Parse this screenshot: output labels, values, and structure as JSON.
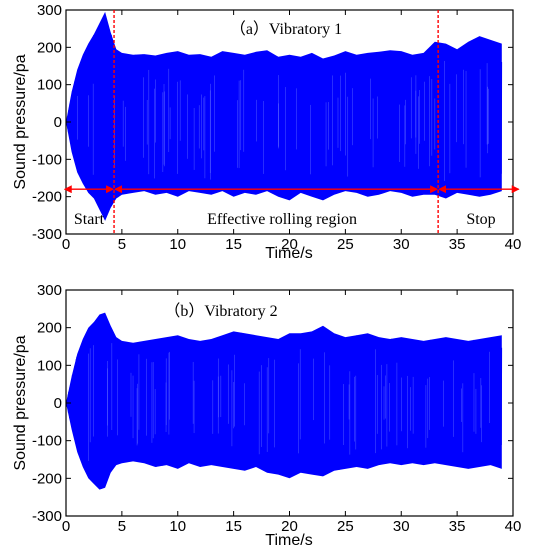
{
  "colors": {
    "signal": "#0000ff",
    "marker": "#ff0000",
    "axis": "#000000"
  },
  "chart_data": [
    {
      "type": "line",
      "title": "（a）Vibratory 1",
      "xlabel": "Time/s",
      "ylabel": "Sound pressure/pa",
      "xlim": [
        0,
        40
      ],
      "ylim": [
        -300,
        300
      ],
      "xticks": [
        "0",
        "5",
        "10",
        "15",
        "20",
        "25",
        "30",
        "35",
        "40"
      ],
      "yticks": [
        "300",
        "200",
        "100",
        "0",
        "-100",
        "-200",
        "-300"
      ],
      "grid": false,
      "series": [
        {
          "x": [
            0,
            0.5,
            1,
            1.5,
            2,
            2.5,
            3,
            3.5,
            4,
            4.5,
            5,
            6,
            7,
            8,
            9,
            10,
            11,
            12,
            13,
            14,
            15,
            16,
            17,
            18,
            19,
            20,
            21,
            22,
            23,
            24,
            25,
            26,
            27,
            28,
            29,
            30,
            31,
            32,
            33,
            34,
            35,
            36,
            37,
            38,
            39
          ],
          "upper": [
            0,
            80,
            140,
            180,
            210,
            235,
            265,
            295,
            240,
            195,
            185,
            180,
            182,
            178,
            185,
            190,
            180,
            182,
            175,
            190,
            185,
            180,
            188,
            192,
            175,
            180,
            175,
            185,
            170,
            178,
            190,
            180,
            185,
            188,
            192,
            190,
            180,
            185,
            215,
            210,
            195,
            215,
            230,
            220,
            210
          ],
          "lower": [
            0,
            -80,
            -135,
            -165,
            -190,
            -205,
            -235,
            -265,
            -230,
            -205,
            -195,
            -190,
            -185,
            -195,
            -190,
            -200,
            -185,
            -190,
            -195,
            -185,
            -200,
            -190,
            -195,
            -185,
            -200,
            -210,
            -190,
            -200,
            -210,
            -195,
            -185,
            -190,
            -200,
            -195,
            -185,
            -190,
            -200,
            -195,
            -195,
            -205,
            -190,
            -195,
            -200,
            -195,
            -185
          ]
        }
      ],
      "markers": [
        {
          "x": 4.3
        },
        {
          "x": 33.3
        }
      ],
      "arrow_y": -180,
      "regions": [
        {
          "label": "Start"
        },
        {
          "label": "Effective rolling region"
        },
        {
          "label": "Stop"
        }
      ]
    },
    {
      "type": "line",
      "title": "（b）Vibratory 2",
      "xlabel": "Time/s",
      "ylabel": "Sound pressure/pa",
      "xlim": [
        0,
        40
      ],
      "ylim": [
        -300,
        300
      ],
      "xticks": [
        "0",
        "5",
        "10",
        "15",
        "20",
        "25",
        "30",
        "35",
        "40"
      ],
      "yticks": [
        "300",
        "200",
        "100",
        "0",
        "-100",
        "-200",
        "-300"
      ],
      "grid": false,
      "series": [
        {
          "x": [
            0,
            0.5,
            1,
            1.5,
            2,
            2.5,
            3,
            3.5,
            4,
            4.5,
            5,
            6,
            7,
            8,
            9,
            10,
            11,
            12,
            13,
            14,
            15,
            16,
            17,
            18,
            19,
            20,
            21,
            22,
            23,
            24,
            25,
            26,
            27,
            28,
            29,
            30,
            31,
            32,
            33,
            34,
            35,
            36,
            37,
            38,
            39
          ],
          "upper": [
            0,
            70,
            130,
            170,
            200,
            215,
            235,
            240,
            205,
            175,
            165,
            160,
            165,
            170,
            175,
            180,
            170,
            165,
            170,
            180,
            190,
            185,
            180,
            175,
            170,
            185,
            185,
            190,
            205,
            185,
            175,
            180,
            185,
            175,
            170,
            175,
            170,
            165,
            170,
            175,
            170,
            165,
            170,
            175,
            180
          ],
          "lower": [
            0,
            -70,
            -130,
            -170,
            -200,
            -215,
            -230,
            -225,
            -185,
            -165,
            -160,
            -155,
            -160,
            -170,
            -165,
            -175,
            -160,
            -170,
            -165,
            -170,
            -175,
            -180,
            -170,
            -185,
            -190,
            -200,
            -185,
            -190,
            -195,
            -180,
            -175,
            -170,
            -175,
            -165,
            -160,
            -165,
            -160,
            -165,
            -160,
            -165,
            -170,
            -175,
            -170,
            -165,
            -175
          ]
        }
      ]
    }
  ]
}
